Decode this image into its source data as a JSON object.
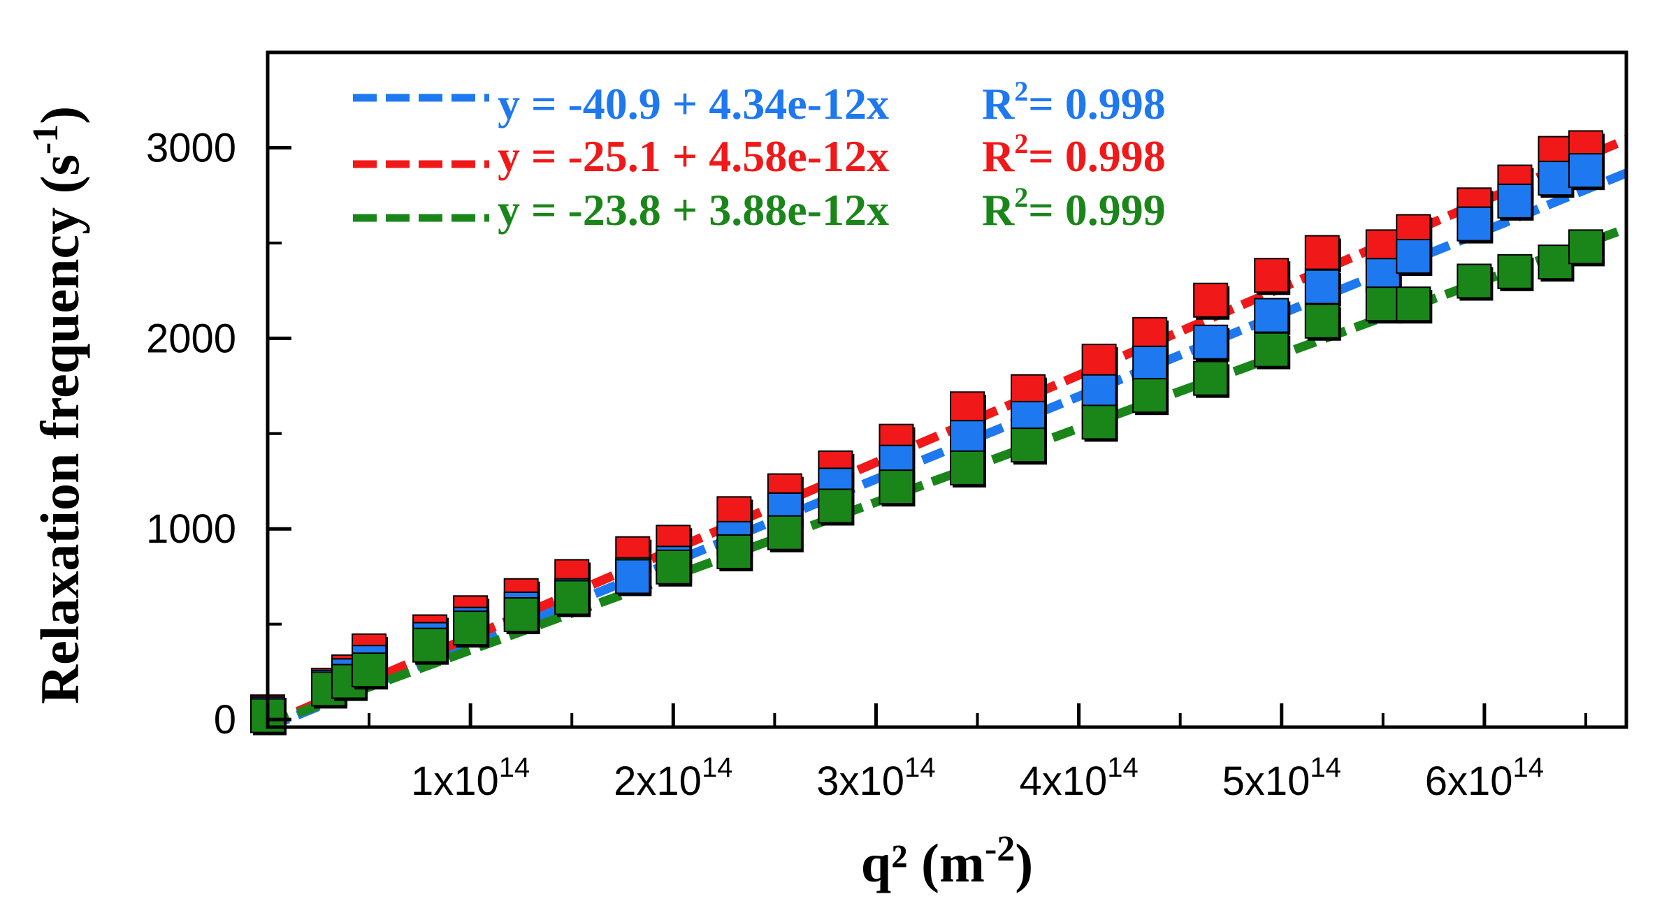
{
  "chart_data": {
    "type": "scatter",
    "xlabel": "q²",
    "xlabel_unit_base": "m",
    "xlabel_unit_exp": "-2",
    "ylabel": "Relaxation frequency",
    "ylabel_unit_base": "s",
    "ylabel_unit_exp": "-1",
    "xlim": [
      0,
      670000000000000
    ],
    "ylim": [
      -40,
      3500
    ],
    "grid": false,
    "legend_position": "top-left",
    "x_ticks": [
      {
        "value": 100000000000000,
        "mantissa": "1x10",
        "exp": "14"
      },
      {
        "value": 200000000000000,
        "mantissa": "2x10",
        "exp": "14"
      },
      {
        "value": 300000000000000,
        "mantissa": "3x10",
        "exp": "14"
      },
      {
        "value": 400000000000000,
        "mantissa": "4x10",
        "exp": "14"
      },
      {
        "value": 500000000000000,
        "mantissa": "5x10",
        "exp": "14"
      },
      {
        "value": 600000000000000,
        "mantissa": "6x10",
        "exp": "14"
      }
    ],
    "y_ticks": [
      {
        "value": 0,
        "label": "0"
      },
      {
        "value": 1000,
        "label": "1000"
      },
      {
        "value": 2000,
        "label": "2000"
      },
      {
        "value": 3000,
        "label": "3000"
      }
    ],
    "series": [
      {
        "name": "blue",
        "color": "#1E78F0",
        "fit_equation": "y = -40.9 + 4.34e-12x",
        "r2_prefix": "R",
        "r2_exp": "2",
        "r2_value": "= 0.998",
        "intercept": -40.9,
        "slope": 4.34e-12,
        "x": [
          0,
          30000000000000.0,
          40000000000000.0,
          50000000000000.0,
          80000000000000.0,
          100000000000000.0,
          125000000000000.0,
          150000000000000.0,
          180000000000000.0,
          200000000000000.0,
          230000000000000.0,
          255000000000000.0,
          280000000000000.0,
          310000000000000.0,
          345000000000000.0,
          375000000000000.0,
          410000000000000.0,
          435000000000000.0,
          465000000000000.0,
          495000000000000.0,
          520000000000000.0,
          550000000000000.0,
          565000000000000.0,
          595000000000000.0,
          615000000000000.0,
          635000000000000.0,
          650000000000000.0
        ],
        "values": [
          30,
          170,
          230,
          300,
          420,
          500,
          580,
          650,
          750,
          820,
          950,
          1100,
          1230,
          1350,
          1480,
          1580,
          1720,
          1870,
          1980,
          2120,
          2270,
          2330,
          2430,
          2600,
          2720,
          2840,
          2880
        ]
      },
      {
        "name": "red",
        "color": "#F01818",
        "fit_equation": "y = -25.1 + 4.58e-12x",
        "r2_prefix": "R",
        "r2_exp": "2",
        "r2_value": "= 0.998",
        "intercept": -25.1,
        "slope": 4.58e-12,
        "x": [
          0,
          30000000000000.0,
          40000000000000.0,
          50000000000000.0,
          80000000000000.0,
          100000000000000.0,
          125000000000000.0,
          150000000000000.0,
          180000000000000.0,
          200000000000000.0,
          230000000000000.0,
          255000000000000.0,
          280000000000000.0,
          310000000000000.0,
          345000000000000.0,
          375000000000000.0,
          410000000000000.0,
          435000000000000.0,
          465000000000000.0,
          495000000000000.0,
          520000000000000.0,
          550000000000000.0,
          565000000000000.0,
          595000000000000.0,
          615000000000000.0,
          635000000000000.0,
          650000000000000.0
        ],
        "values": [
          40,
          180,
          250,
          360,
          460,
          560,
          650,
          750,
          870,
          930,
          1080,
          1200,
          1320,
          1460,
          1630,
          1720,
          1880,
          2020,
          2200,
          2330,
          2450,
          2480,
          2560,
          2700,
          2820,
          2970,
          3000
        ]
      },
      {
        "name": "green",
        "color": "#1A861A",
        "fit_equation": "y = -23.8 + 3.88e-12x",
        "r2_prefix": "R",
        "r2_exp": "2",
        "r2_value": "= 0.999",
        "intercept": -23.8,
        "slope": 3.88e-12,
        "x": [
          0,
          30000000000000.0,
          40000000000000.0,
          50000000000000.0,
          80000000000000.0,
          100000000000000.0,
          125000000000000.0,
          150000000000000.0,
          180000000000000.0,
          200000000000000.0,
          230000000000000.0,
          255000000000000.0,
          280000000000000.0,
          310000000000000.0,
          345000000000000.0,
          375000000000000.0,
          410000000000000.0,
          435000000000000.0,
          465000000000000.0,
          495000000000000.0,
          520000000000000.0,
          550000000000000.0,
          565000000000000.0,
          595000000000000.0,
          615000000000000.0,
          635000000000000.0,
          650000000000000.0
        ],
        "values": [
          20,
          160,
          200,
          260,
          390,
          480,
          550,
          640,
          760,
          800,
          880,
          980,
          1120,
          1220,
          1320,
          1440,
          1560,
          1700,
          1790,
          1940,
          2090,
          2180,
          2180,
          2300,
          2350,
          2400,
          2480
        ]
      }
    ]
  }
}
